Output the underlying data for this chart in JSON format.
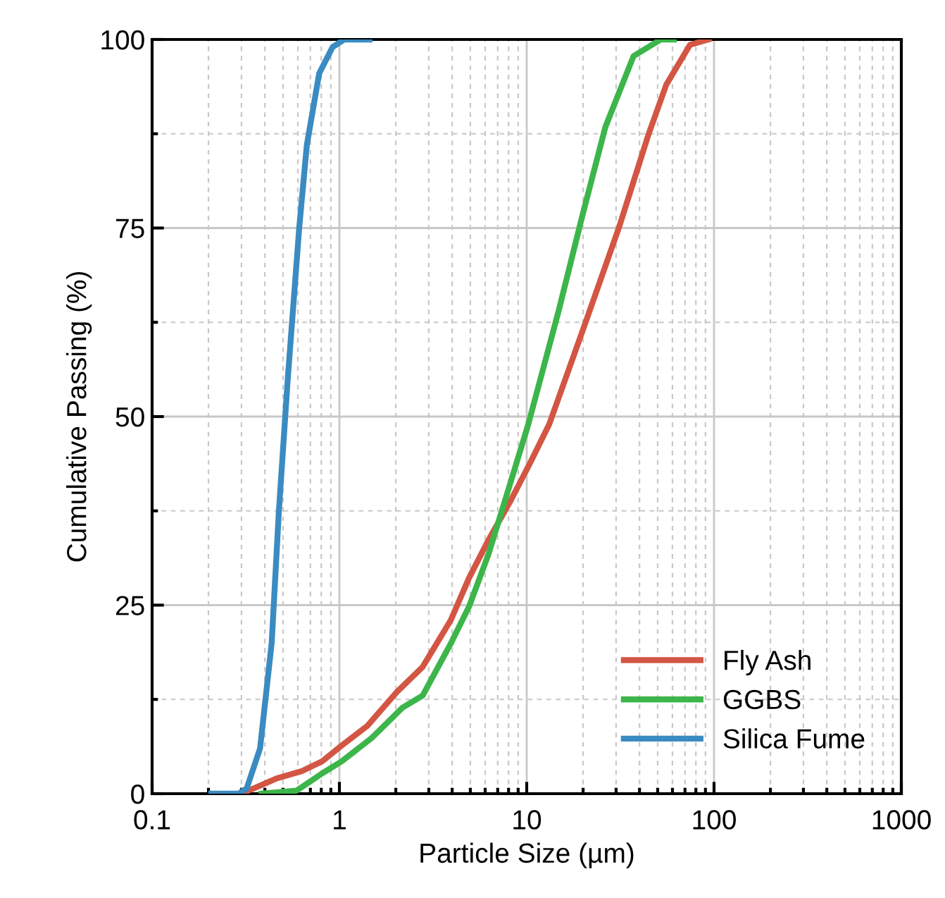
{
  "chart_data": {
    "type": "line",
    "xlabel": "Particle Size (µm)",
    "ylabel": "Cumulative Passing (%)",
    "log": "x",
    "xlim": [
      0.1,
      1000
    ],
    "xticks": [
      0.1,
      1,
      10,
      100,
      1000
    ],
    "ylim": [
      0,
      100
    ],
    "yticks": [
      0,
      25,
      50,
      75,
      100
    ],
    "grid": true,
    "legend": "bottom right",
    "marker": "none",
    "line_style": "solid",
    "series": [
      {
        "name": "Fly Ash",
        "color": "#d35644",
        "x": [
          0.3,
          0.46,
          0.63,
          0.81,
          1.03,
          1.41,
          2.03,
          2.78,
          3.93,
          4.92,
          6.24,
          8.27,
          10.5,
          13.2,
          20.9,
          31.3,
          44.4,
          55.6,
          74.5,
          93.6
        ],
        "values": [
          0,
          2,
          3,
          4.3,
          6.4,
          9,
          13.5,
          16.8,
          23,
          28.6,
          33.6,
          39,
          44,
          49,
          62.9,
          75.3,
          87.2,
          94,
          99.3,
          100
        ]
      },
      {
        "name": "GGBS",
        "color": "#3cb54a",
        "x": [
          0.384,
          0.59,
          0.81,
          1.03,
          1.49,
          2.17,
          2.78,
          3.93,
          4.94,
          6.24,
          8.3,
          10.2,
          14.8,
          19.8,
          26.3,
          37.2,
          52,
          61
        ],
        "values": [
          0,
          0.4,
          2.7,
          4.3,
          7.4,
          11.4,
          13,
          19.9,
          24.9,
          31.7,
          41.7,
          49,
          64,
          76.6,
          88.4,
          97.8,
          100,
          100
        ]
      },
      {
        "name": "Silica Fume",
        "color": "#3a8bc2",
        "x": [
          0.207,
          0.29,
          0.32,
          0.377,
          0.435,
          0.475,
          0.53,
          0.61,
          0.67,
          0.78,
          0.92,
          1.06,
          1.45
        ],
        "values": [
          0,
          0,
          0.7,
          6,
          20,
          37.4,
          55,
          75,
          86,
          95.5,
          99,
          100,
          100
        ]
      }
    ]
  }
}
